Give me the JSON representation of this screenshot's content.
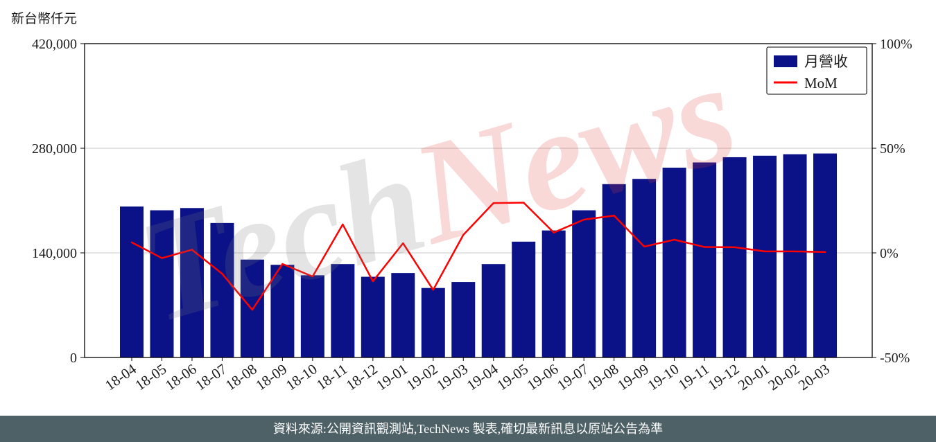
{
  "page": {
    "unit_label": "新台幣仟元",
    "footer_text": "資料來源:公開資訊觀測站,TechNews 製表,確切最新訊息以原站公告為準",
    "watermark_part1": "Tech",
    "watermark_part2": "News"
  },
  "chart_data": {
    "type": "bar",
    "title": "",
    "xlabel": "",
    "ylabel": "新台幣仟元",
    "categories": [
      "18-04",
      "18-05",
      "18-06",
      "18-07",
      "18-08",
      "18-09",
      "18-10",
      "18-11",
      "18-12",
      "19-01",
      "19-02",
      "19-03",
      "19-04",
      "19-05",
      "19-06",
      "19-07",
      "19-08",
      "19-09",
      "19-10",
      "19-11",
      "19-12",
      "20-01",
      "20-02",
      "20-03"
    ],
    "series": [
      {
        "name": "月營收",
        "type": "bar",
        "axis": "left",
        "values": [
          202000,
          197000,
          200000,
          180000,
          131000,
          124000,
          110000,
          125000,
          108000,
          113000,
          93000,
          101000,
          125000,
          155000,
          170000,
          197000,
          232000,
          239000,
          254000,
          261000,
          268000,
          270000,
          272000,
          273000
        ]
      },
      {
        "name": "MoM",
        "type": "line",
        "axis": "right",
        "values": [
          5.0,
          -2.5,
          1.5,
          -10.0,
          -27.2,
          -5.3,
          -11.3,
          13.6,
          -13.6,
          4.6,
          -17.7,
          8.6,
          23.8,
          24.0,
          9.7,
          15.9,
          17.8,
          3.0,
          6.3,
          2.8,
          2.7,
          0.7,
          0.7,
          0.4
        ]
      }
    ],
    "left_axis": {
      "min": 0,
      "max": 420000,
      "ticks": [
        0,
        140000,
        280000,
        420000
      ],
      "tick_labels": [
        "0",
        "140,000",
        "280,000",
        "420,000"
      ]
    },
    "right_axis": {
      "min": -50,
      "max": 100,
      "ticks": [
        -50,
        0,
        50,
        100
      ],
      "tick_labels": [
        "-50%",
        "0%",
        "50%",
        "100%"
      ]
    },
    "legend": {
      "position": "top-right",
      "entries": [
        "月營收",
        "MoM"
      ]
    },
    "grid": "horizontal"
  },
  "colors": {
    "bar": "#0b1287",
    "line": "#ff0000",
    "grid": "#c9c9c9",
    "axis_text": "#1a1a1a",
    "plot_border": "#000000",
    "footer_bg": "#4e6167",
    "footer_text": "#ffffff",
    "watermark_gray": "rgba(120,120,120,0.20)",
    "watermark_red": "rgba(225,60,60,0.20)"
  }
}
